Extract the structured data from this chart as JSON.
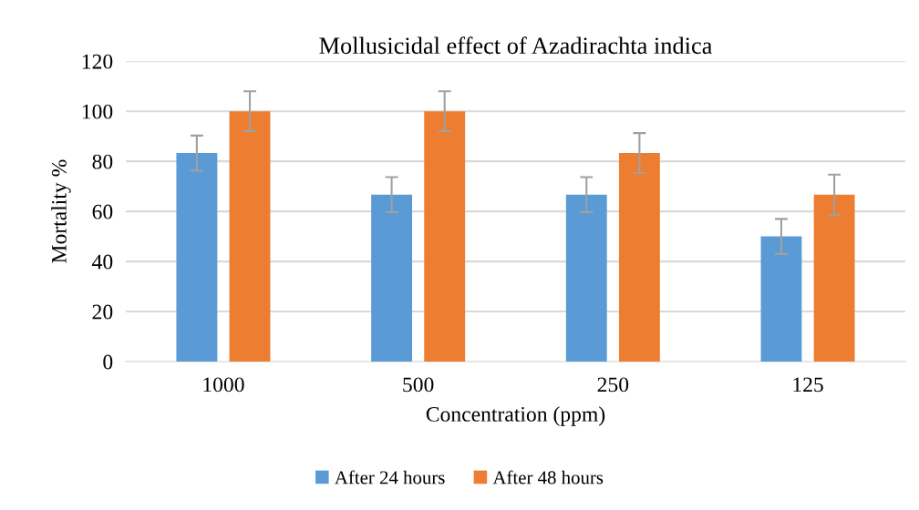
{
  "chart_data": {
    "type": "bar",
    "title": "Mollusicidal effect of Azadirachta indica",
    "xlabel": "Concentration (ppm)",
    "ylabel": "Mortality %",
    "categories": [
      "1000",
      "500",
      "250",
      "125"
    ],
    "series": [
      {
        "name": "After 24 hours",
        "color": "#5b9bd5",
        "values": [
          83.3,
          66.7,
          66.7,
          50
        ],
        "errors": [
          7,
          7,
          7,
          7
        ]
      },
      {
        "name": "After 48 hours",
        "color": "#ed7d31",
        "values": [
          100,
          100,
          83.3,
          66.7
        ],
        "errors": [
          8,
          8,
          8,
          8
        ]
      }
    ],
    "ylim": [
      0,
      120
    ],
    "yticks": [
      0,
      20,
      40,
      60,
      80,
      100,
      120
    ],
    "grid": "y",
    "legend": "bottom"
  }
}
